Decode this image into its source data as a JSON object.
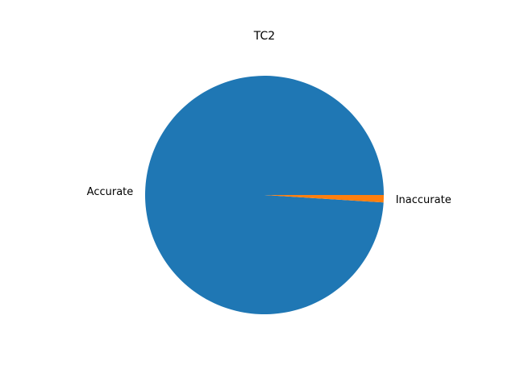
{
  "chart_data": {
    "type": "pie",
    "title": "TC2",
    "slices": [
      {
        "label": "Accurate",
        "value": 99,
        "color": "#1f77b4"
      },
      {
        "label": "Inaccurate",
        "value": 1,
        "color": "#ff7f0e"
      }
    ],
    "legend": "none"
  }
}
